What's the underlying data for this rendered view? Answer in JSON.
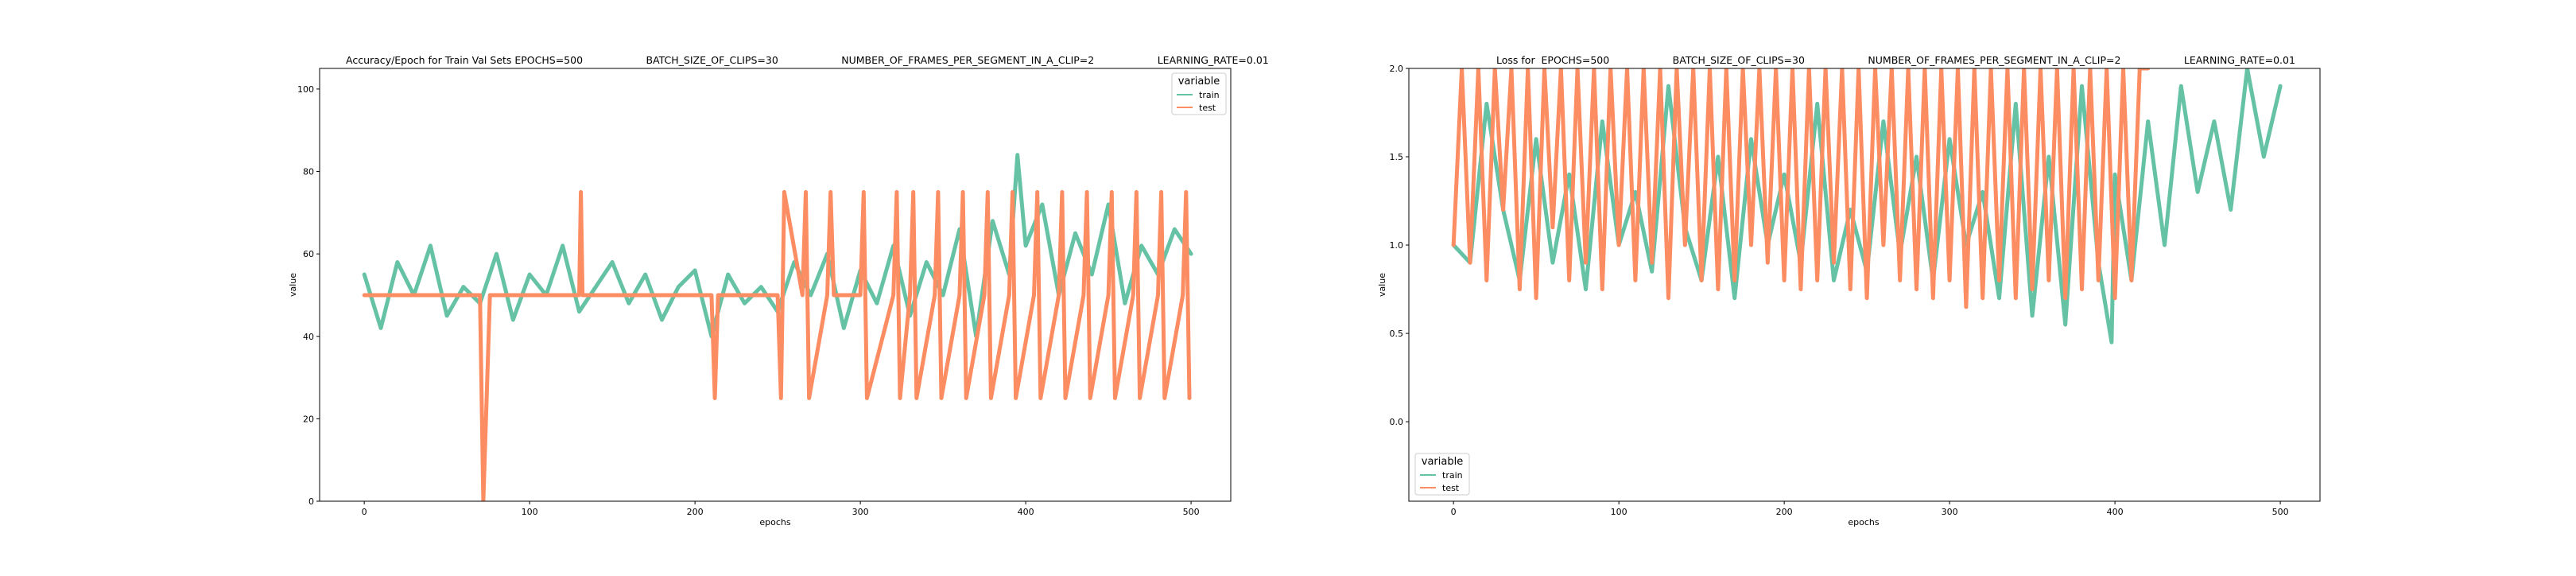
{
  "chart_data": [
    {
      "type": "line",
      "title": "Accuracy/Epoch for Train Val Sets EPOCHS=500                    BATCH_SIZE_OF_CLIPS=30                    NUMBER_OF_FRAMES_PER_SEGMENT_IN_A_CLIP=2                    LEARNING_RATE=0.01",
      "xlabel": "epochs",
      "ylabel": "value",
      "xlim": [
        -27,
        524
      ],
      "ylim": [
        0,
        105
      ],
      "xticks": [
        0,
        100,
        200,
        300,
        400,
        500
      ],
      "yticks": [
        0,
        20,
        40,
        60,
        80,
        100
      ],
      "grid": false,
      "legend": {
        "title": "variable",
        "placement": "top-right"
      },
      "series": [
        {
          "name": "train",
          "color": "#66c2a5",
          "x": [
            0,
            10,
            20,
            30,
            40,
            50,
            60,
            70,
            80,
            90,
            100,
            110,
            120,
            130,
            140,
            150,
            160,
            170,
            180,
            190,
            200,
            210,
            220,
            230,
            240,
            250,
            260,
            270,
            280,
            290,
            300,
            310,
            320,
            330,
            340,
            350,
            360,
            370,
            380,
            390,
            395,
            400,
            410,
            420,
            430,
            440,
            450,
            460,
            470,
            480,
            490,
            500
          ],
          "y": [
            55,
            42,
            58,
            50,
            62,
            45,
            52,
            48,
            60,
            44,
            55,
            50,
            62,
            46,
            52,
            58,
            48,
            55,
            44,
            52,
            56,
            40,
            55,
            48,
            52,
            46,
            58,
            50,
            60,
            42,
            56,
            48,
            62,
            45,
            58,
            50,
            66,
            40,
            68,
            55,
            84,
            62,
            72,
            50,
            65,
            55,
            72,
            48,
            62,
            55,
            66,
            60
          ]
        },
        {
          "name": "test",
          "color": "#fc8d62",
          "x": [
            0,
            70,
            72,
            74,
            76,
            78,
            130,
            131,
            132,
            133,
            134,
            210,
            212,
            214,
            216,
            250,
            252,
            254,
            265,
            267,
            269,
            280,
            282,
            284,
            300,
            302,
            304,
            320,
            322,
            324,
            330,
            332,
            334,
            345,
            347,
            349,
            360,
            362,
            364,
            375,
            377,
            379,
            390,
            392,
            394,
            405,
            407,
            409,
            420,
            422,
            424,
            435,
            437,
            439,
            450,
            452,
            454,
            465,
            467,
            469,
            480,
            482,
            484,
            495,
            497,
            499
          ],
          "y": [
            50,
            50,
            0,
            25,
            50,
            50,
            50,
            75,
            50,
            50,
            50,
            50,
            25,
            50,
            50,
            50,
            25,
            75,
            50,
            75,
            25,
            50,
            75,
            50,
            50,
            75,
            25,
            50,
            75,
            25,
            50,
            75,
            25,
            50,
            75,
            25,
            50,
            75,
            25,
            50,
            75,
            25,
            50,
            75,
            25,
            50,
            75,
            25,
            50,
            75,
            25,
            50,
            75,
            25,
            50,
            75,
            25,
            50,
            75,
            25,
            50,
            75,
            25,
            50,
            75,
            25
          ]
        }
      ]
    },
    {
      "type": "line",
      "title": "Loss for  EPOCHS=500                    BATCH_SIZE_OF_CLIPS=30                    NUMBER_OF_FRAMES_PER_SEGMENT_IN_A_CLIP=2                    LEARNING_RATE=0.01",
      "xlabel": "epochs",
      "ylabel": "value",
      "xlim": [
        -27,
        524
      ],
      "ylim": [
        -0.45,
        2.0
      ],
      "xticks": [
        0,
        100,
        200,
        300,
        400,
        500
      ],
      "yticks": [
        0.0,
        0.5,
        1.0,
        1.5,
        2.0
      ],
      "ytick_labels": [
        "0.0",
        "0.5",
        "1.0",
        "1.5",
        "2.0"
      ],
      "grid": false,
      "legend": {
        "title": "variable",
        "placement": "bottom-left"
      },
      "series": [
        {
          "name": "train",
          "color": "#66c2a5",
          "x": [
            0,
            10,
            20,
            30,
            40,
            50,
            60,
            70,
            80,
            90,
            100,
            110,
            120,
            130,
            140,
            150,
            160,
            170,
            180,
            190,
            200,
            210,
            220,
            230,
            240,
            250,
            260,
            270,
            280,
            290,
            300,
            310,
            320,
            330,
            340,
            350,
            360,
            370,
            380,
            390,
            398,
            400,
            410,
            420,
            430,
            440,
            450,
            460,
            470,
            480,
            490,
            500
          ],
          "y": [
            1.0,
            0.9,
            1.8,
            1.2,
            0.8,
            1.6,
            0.9,
            1.4,
            0.75,
            1.7,
            1.0,
            1.3,
            0.85,
            1.9,
            1.1,
            0.8,
            1.5,
            0.7,
            1.6,
            1.0,
            1.4,
            0.9,
            1.8,
            0.8,
            1.2,
            0.85,
            1.7,
            0.95,
            1.5,
            0.8,
            1.6,
            1.0,
            1.3,
            0.7,
            1.8,
            0.6,
            1.5,
            0.55,
            1.9,
            0.9,
            0.45,
            1.4,
            0.8,
            1.7,
            1.0,
            1.9,
            1.3,
            1.7,
            1.2,
            2.0,
            1.5,
            1.9
          ]
        },
        {
          "name": "test",
          "color": "#fc8d62",
          "x": [
            0,
            5,
            10,
            15,
            20,
            25,
            30,
            35,
            40,
            45,
            50,
            55,
            60,
            65,
            70,
            75,
            80,
            85,
            90,
            95,
            100,
            105,
            110,
            115,
            120,
            125,
            130,
            135,
            140,
            145,
            150,
            155,
            160,
            165,
            170,
            175,
            180,
            185,
            190,
            195,
            200,
            205,
            210,
            215,
            220,
            225,
            230,
            235,
            240,
            245,
            250,
            255,
            260,
            265,
            270,
            275,
            280,
            285,
            290,
            295,
            300,
            305,
            310,
            315,
            320,
            325,
            330,
            335,
            340,
            345,
            350,
            355,
            360,
            365,
            370,
            375,
            380,
            385,
            390,
            395,
            400,
            405,
            410,
            415,
            420
          ],
          "y": [
            1.0,
            2.0,
            0.9,
            2.0,
            0.8,
            2.0,
            1.2,
            2.0,
            0.75,
            2.0,
            0.7,
            2.0,
            1.1,
            2.0,
            0.8,
            2.0,
            0.9,
            2.0,
            0.75,
            2.0,
            1.0,
            2.0,
            0.8,
            2.0,
            0.9,
            2.0,
            0.7,
            2.0,
            1.0,
            2.0,
            0.8,
            2.0,
            0.75,
            2.0,
            0.8,
            2.0,
            1.0,
            2.0,
            0.9,
            2.0,
            0.8,
            2.0,
            0.75,
            2.0,
            0.8,
            2.0,
            0.9,
            2.0,
            0.75,
            2.0,
            0.7,
            2.0,
            1.0,
            2.0,
            0.8,
            2.0,
            0.75,
            2.0,
            0.7,
            2.0,
            0.8,
            2.0,
            0.65,
            2.0,
            0.7,
            2.0,
            0.8,
            2.0,
            0.7,
            2.0,
            0.75,
            2.0,
            0.8,
            2.0,
            0.7,
            2.0,
            0.75,
            2.0,
            0.8,
            2.0,
            0.7,
            2.0,
            0.8,
            2.0,
            2.0
          ]
        }
      ]
    }
  ]
}
